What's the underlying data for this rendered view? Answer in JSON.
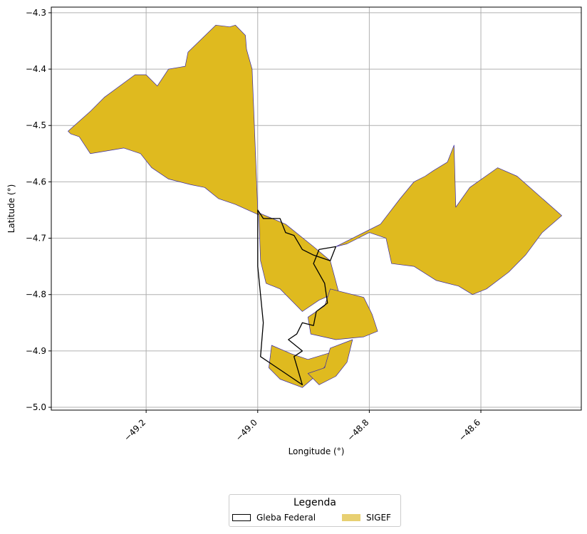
{
  "chart_data": {
    "type": "map",
    "title": "",
    "xlabel": "Longitude (°)",
    "ylabel": "Latitude (°)",
    "xlim": [
      -49.37,
      -48.42
    ],
    "ylim": [
      -5.005,
      -4.29
    ],
    "xticks": [
      -49.2,
      -49.0,
      -48.8,
      -48.6
    ],
    "xtick_labels": [
      "−49.2",
      "−49.0",
      "−48.8",
      "−48.6"
    ],
    "yticks": [
      -4.3,
      -4.4,
      -4.5,
      -4.6,
      -4.7,
      -4.8,
      -4.9,
      -5.0
    ],
    "ytick_labels": [
      "−4.3",
      "−4.4",
      "−4.5",
      "−4.6",
      "−4.7",
      "−4.8",
      "−4.9",
      "−5.0"
    ],
    "grid": true,
    "legend": {
      "title": "Legenda",
      "placement": "bottom-center",
      "entries": [
        {
          "label": "Gleba Federal",
          "style": "outline",
          "color": "#000000"
        },
        {
          "label": "SIGEF",
          "style": "fill",
          "color": "#e8d072"
        }
      ]
    },
    "colors": {
      "sigef_fill": "#dfba1f",
      "sigef_edge": "#3a2aa6",
      "gleba_edge": "#000000"
    },
    "layers": [
      {
        "name": "SIGEF",
        "polygons": [
          [
            [
              -49.34,
              -4.51
            ],
            [
              -49.3,
              -4.475
            ],
            [
              -49.275,
              -4.45
            ],
            [
              -49.22,
              -4.41
            ],
            [
              -49.2,
              -4.41
            ],
            [
              -49.18,
              -4.43
            ],
            [
              -49.16,
              -4.4
            ],
            [
              -49.13,
              -4.395
            ],
            [
              -49.125,
              -4.37
            ],
            [
              -49.075,
              -4.322
            ],
            [
              -49.05,
              -4.325
            ],
            [
              -49.04,
              -4.322
            ],
            [
              -49.022,
              -4.34
            ],
            [
              -49.02,
              -4.365
            ],
            [
              -49.01,
              -4.4
            ],
            [
              -49.0,
              -4.65
            ],
            [
              -48.995,
              -4.66
            ],
            [
              -49.04,
              -4.64
            ],
            [
              -49.07,
              -4.63
            ],
            [
              -49.095,
              -4.61
            ],
            [
              -49.12,
              -4.605
            ],
            [
              -49.14,
              -4.6
            ],
            [
              -49.16,
              -4.595
            ],
            [
              -49.19,
              -4.575
            ],
            [
              -49.21,
              -4.55
            ],
            [
              -49.24,
              -4.54
            ],
            [
              -49.27,
              -4.545
            ],
            [
              -49.3,
              -4.55
            ],
            [
              -49.32,
              -4.52
            ],
            [
              -49.335,
              -4.515
            ]
          ],
          [
            [
              -48.86,
              -4.715
            ],
            [
              -48.82,
              -4.695
            ],
            [
              -48.78,
              -4.675
            ],
            [
              -48.745,
              -4.63
            ],
            [
              -48.72,
              -4.6
            ],
            [
              -48.7,
              -4.59
            ],
            [
              -48.685,
              -4.58
            ],
            [
              -48.66,
              -4.565
            ],
            [
              -48.648,
              -4.535
            ],
            [
              -48.645,
              -4.645
            ],
            [
              -48.62,
              -4.61
            ],
            [
              -48.57,
              -4.575
            ],
            [
              -48.535,
              -4.59
            ],
            [
              -48.455,
              -4.66
            ],
            [
              -48.49,
              -4.69
            ],
            [
              -48.52,
              -4.73
            ],
            [
              -48.55,
              -4.76
            ],
            [
              -48.59,
              -4.79
            ],
            [
              -48.615,
              -4.8
            ],
            [
              -48.64,
              -4.785
            ],
            [
              -48.68,
              -4.775
            ],
            [
              -48.72,
              -4.75
            ],
            [
              -48.76,
              -4.745
            ],
            [
              -48.77,
              -4.7
            ],
            [
              -48.8,
              -4.69
            ],
            [
              -48.84,
              -4.71
            ]
          ],
          [
            [
              -48.998,
              -4.655
            ],
            [
              -48.95,
              -4.675
            ],
            [
              -48.9,
              -4.715
            ],
            [
              -48.87,
              -4.74
            ],
            [
              -48.855,
              -4.795
            ],
            [
              -48.89,
              -4.81
            ],
            [
              -48.92,
              -4.83
            ],
            [
              -48.96,
              -4.79
            ],
            [
              -48.985,
              -4.78
            ],
            [
              -48.995,
              -4.74
            ]
          ],
          [
            [
              -48.87,
              -4.79
            ],
            [
              -48.81,
              -4.805
            ],
            [
              -48.795,
              -4.835
            ],
            [
              -48.785,
              -4.865
            ],
            [
              -48.81,
              -4.875
            ],
            [
              -48.86,
              -4.88
            ],
            [
              -48.905,
              -4.87
            ],
            [
              -48.91,
              -4.84
            ],
            [
              -48.88,
              -4.82
            ]
          ],
          [
            [
              -48.86,
              -4.9
            ],
            [
              -48.91,
              -4.915
            ],
            [
              -48.94,
              -4.905
            ],
            [
              -48.975,
              -4.89
            ],
            [
              -48.98,
              -4.93
            ],
            [
              -48.96,
              -4.95
            ],
            [
              -48.92,
              -4.965
            ],
            [
              -48.885,
              -4.935
            ]
          ],
          [
            [
              -48.83,
              -4.88
            ],
            [
              -48.87,
              -4.895
            ],
            [
              -48.88,
              -4.93
            ],
            [
              -48.91,
              -4.94
            ],
            [
              -48.89,
              -4.96
            ],
            [
              -48.86,
              -4.945
            ],
            [
              -48.84,
              -4.92
            ]
          ]
        ]
      },
      {
        "name": "Gleba Federal",
        "polygons": [
          [
            [
              -49.0,
              -4.65
            ],
            [
              -48.99,
              -4.665
            ],
            [
              -48.96,
              -4.665
            ],
            [
              -48.95,
              -4.69
            ],
            [
              -48.935,
              -4.695
            ],
            [
              -48.92,
              -4.72
            ],
            [
              -48.9,
              -4.73
            ],
            [
              -48.87,
              -4.74
            ],
            [
              -48.86,
              -4.715
            ],
            [
              -48.89,
              -4.72
            ],
            [
              -48.9,
              -4.745
            ],
            [
              -48.88,
              -4.78
            ],
            [
              -48.875,
              -4.815
            ],
            [
              -48.895,
              -4.83
            ],
            [
              -48.9,
              -4.855
            ],
            [
              -48.92,
              -4.85
            ],
            [
              -48.93,
              -4.87
            ],
            [
              -48.945,
              -4.88
            ],
            [
              -48.92,
              -4.9
            ],
            [
              -48.935,
              -4.91
            ],
            [
              -48.92,
              -4.96
            ],
            [
              -48.95,
              -4.94
            ],
            [
              -48.995,
              -4.91
            ],
            [
              -48.99,
              -4.85
            ],
            [
              -49.0,
              -4.75
            ]
          ]
        ]
      }
    ]
  }
}
